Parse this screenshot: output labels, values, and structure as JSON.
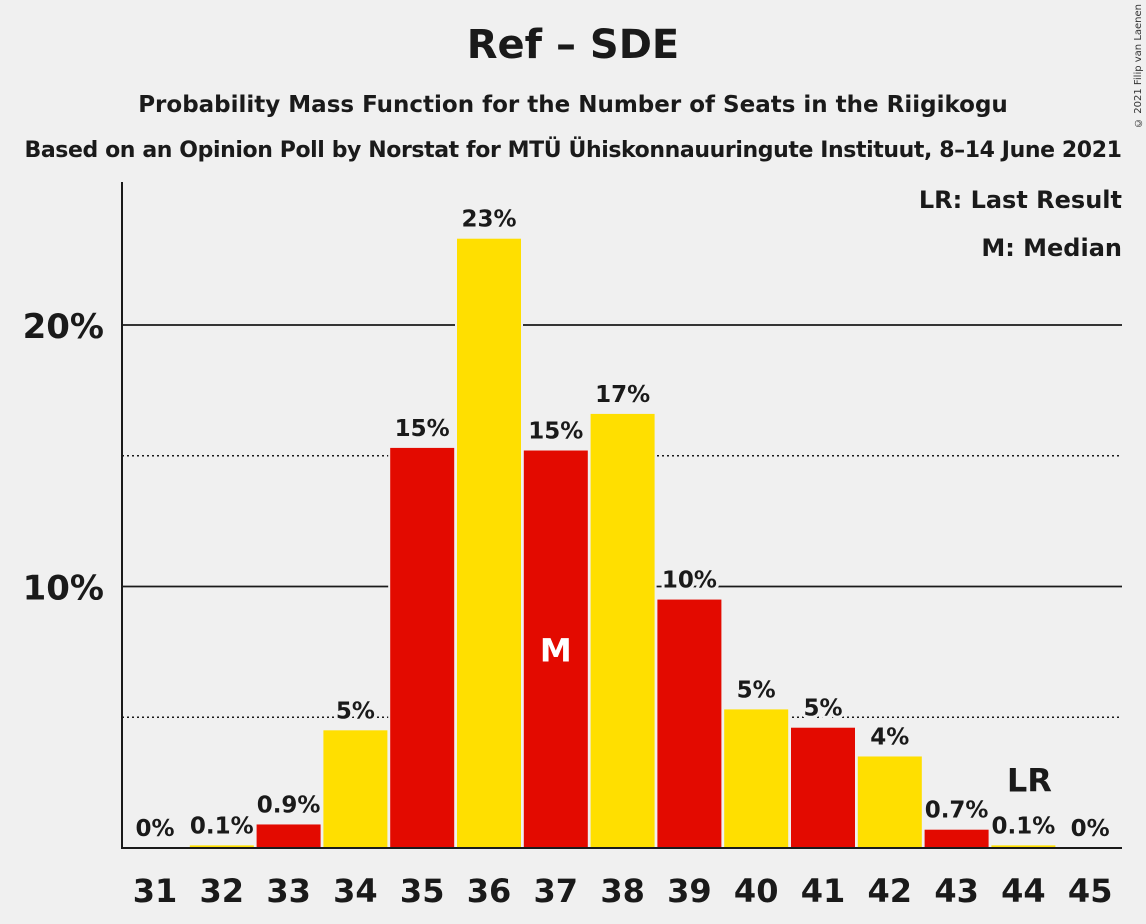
{
  "title": "Ref – SDE",
  "subtitle": "Probability Mass Function for the Number of Seats in the Riigikogu",
  "subtitle2": "Based on an Opinion Poll by Norstat for MTÜ Ühiskonnauuringute Instituut, 8–14 June 2021",
  "copyright": "© 2021 Filip van Laenen",
  "legend": {
    "lr": "LR: Last Result",
    "median": "M: Median"
  },
  "colors": {
    "red": "#e30a00",
    "yellow": "#ffdf00",
    "background": "#f0f0f0"
  },
  "chart_data": {
    "type": "bar",
    "categories": [
      "31",
      "32",
      "33",
      "34",
      "35",
      "36",
      "37",
      "38",
      "39",
      "40",
      "41",
      "42",
      "43",
      "44",
      "45"
    ],
    "values": [
      0,
      0.1,
      0.9,
      4.5,
      15.3,
      23.3,
      15.2,
      16.6,
      9.5,
      5.3,
      4.6,
      3.5,
      0.7,
      0.1,
      0
    ],
    "data_labels": [
      "0%",
      "0.1%",
      "0.9%",
      "5%",
      "15%",
      "23%",
      "15%",
      "17%",
      "10%",
      "5%",
      "5%",
      "4%",
      "0.7%",
      "0.1%",
      "0%"
    ],
    "bar_colors": [
      "red",
      "yellow",
      "red",
      "yellow",
      "red",
      "yellow",
      "red",
      "yellow",
      "red",
      "yellow",
      "red",
      "yellow",
      "red",
      "yellow",
      "red"
    ],
    "median_category": "37",
    "median_marker": "M",
    "last_result_category": "44",
    "last_result_marker": "LR",
    "y_ticks": [
      {
        "value": 10,
        "label": "10%"
      },
      {
        "value": 20,
        "label": "20%"
      }
    ],
    "dotted_gridlines": [
      5,
      15
    ],
    "ylim": [
      0,
      25
    ],
    "grid": true,
    "legend_position": "top-right"
  }
}
